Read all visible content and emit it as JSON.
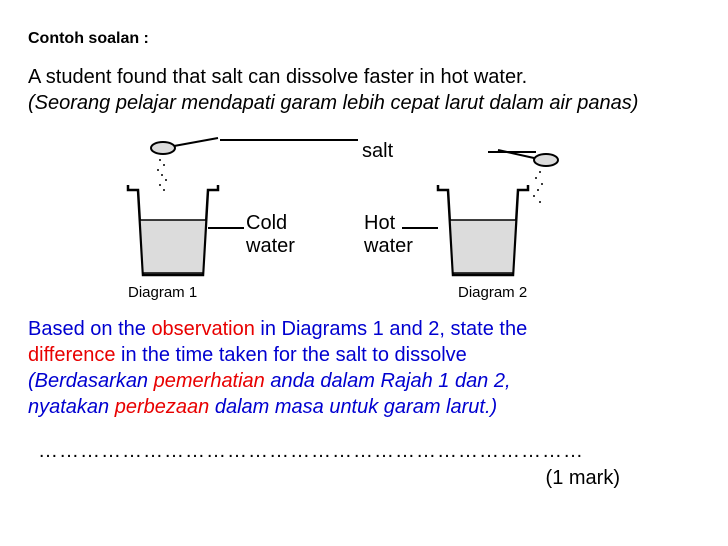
{
  "heading": "Contoh soalan :",
  "statement_en": "A student found that salt can dissolve faster in hot water.",
  "statement_ms": "(Seorang pelajar mendapati garam lebih cepat larut dalam air panas)",
  "salt_label": "salt",
  "diagrams": {
    "d1": {
      "caption": "Diagram 1",
      "water_label": "Cold\nwater"
    },
    "d2": {
      "caption": "Diagram 2",
      "water_label": "Hot\nwater"
    }
  },
  "question": {
    "en_pre": "Based on the ",
    "en_hl1": "observation",
    "en_mid": " in Diagrams 1 and 2, state the ",
    "en_hl2": "difference",
    "en_post": " in the time taken for the salt to dissolve",
    "ms_pre": "(Berdasarkan ",
    "ms_hl1": "pemerhatian",
    "ms_mid": " anda dalam Rajah 1 dan 2,",
    "ms_line2_pre": " nyatakan ",
    "ms_hl2": "perbezaan",
    "ms_line2_post": " dalam masa untuk garam larut.)"
  },
  "answer_line": "……………………………………………………………………",
  "marks": "(1 mark)",
  "colors": {
    "blue": "#0000d0",
    "red": "#e80000",
    "black": "#000000",
    "water_fill": "#dcdcdc",
    "stroke": "#000000"
  }
}
